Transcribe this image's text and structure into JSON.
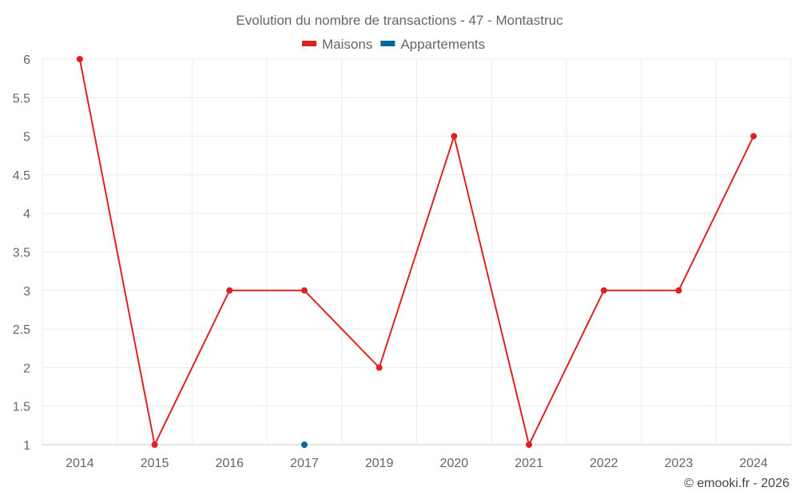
{
  "chart_data": {
    "type": "line",
    "title": "Evolution du nombre de transactions - 47 - Montastruc",
    "categories": [
      "2014",
      "2015",
      "2016",
      "2017",
      "2019",
      "2020",
      "2021",
      "2022",
      "2023",
      "2024"
    ],
    "series": [
      {
        "name": "Maisons",
        "color": "#dd2222",
        "values": [
          6,
          1,
          3,
          3,
          2,
          5,
          1,
          3,
          3,
          5
        ]
      },
      {
        "name": "Appartements",
        "color": "#0066a0",
        "values": [
          null,
          null,
          null,
          1,
          null,
          null,
          null,
          null,
          null,
          null
        ]
      }
    ],
    "ylim": [
      1,
      6
    ],
    "yticks": [
      "1",
      "1.5",
      "2",
      "2.5",
      "3",
      "3.5",
      "4",
      "4.5",
      "5",
      "5.5",
      "6"
    ],
    "grid": true,
    "legend_position": "top-center",
    "xlabel": "",
    "ylabel": ""
  },
  "credit": "© emooki.fr - 2026"
}
